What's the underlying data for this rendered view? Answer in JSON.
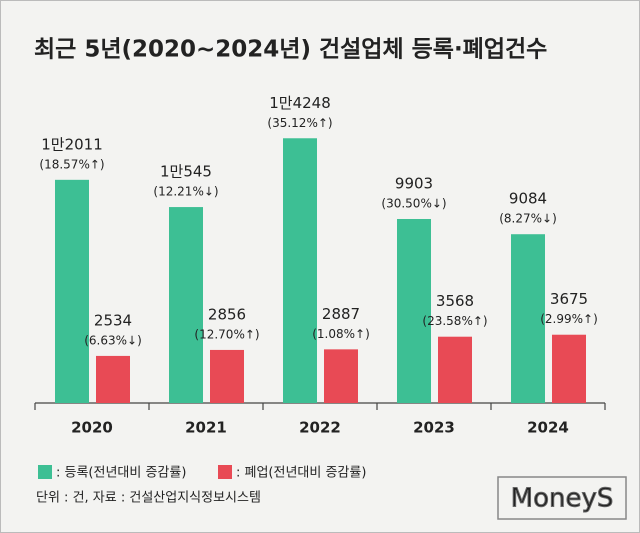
{
  "chart_data": {
    "type": "bar",
    "title": "최근 5년(2020~2024년) 건설업체 등록·폐업건수",
    "categories": [
      "2020",
      "2021",
      "2022",
      "2023",
      "2024"
    ],
    "series": [
      {
        "name": ": 등록(전년대비 증감률)",
        "color": "#3dbf94",
        "values": [
          12011,
          10545,
          14248,
          9903,
          9084
        ],
        "value_labels": [
          "1만2011",
          "1만545",
          "1만4248",
          "9903",
          "9084"
        ],
        "change_labels": [
          "(18.57%↑)",
          "(12.21%↓)",
          "(35.12%↑)",
          "(30.50%↓)",
          "(8.27%↓)"
        ]
      },
      {
        "name": ": 폐업(전년대비 증감률)",
        "color": "#e84a55",
        "values": [
          2534,
          2856,
          2887,
          3568,
          3675
        ],
        "change_labels": [
          "(6.63%↓)",
          "(12.70%↑)",
          "(1.08%↑)",
          "(23.58%↑)",
          "(2.99%↑)"
        ]
      }
    ],
    "ylim": [
      0,
      15500
    ],
    "note": "단위 : 건, 자료 : 건설산업지식정보시스템",
    "logo": "MoneyS"
  }
}
